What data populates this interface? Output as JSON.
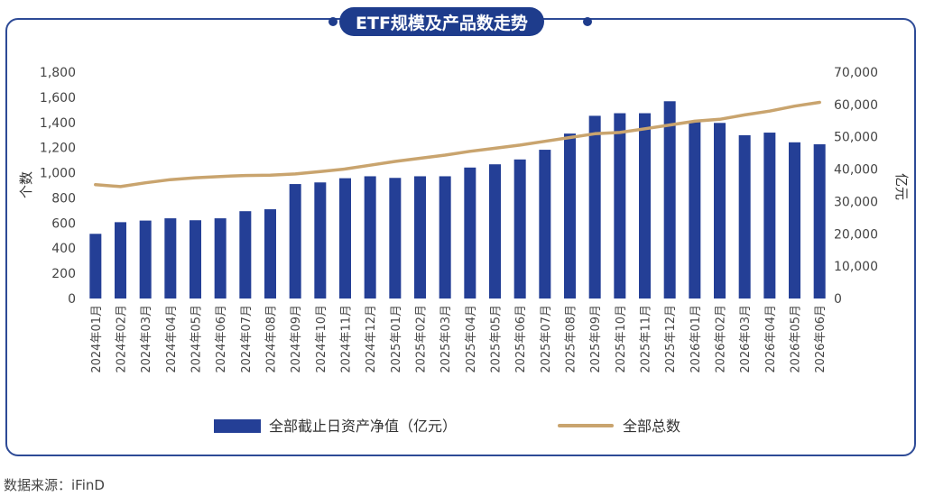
{
  "source": "数据来源：iFinD",
  "colors": {
    "bar": "#243f96",
    "line": "#c9a46e",
    "frame": "#2d4a96"
  },
  "chart_data": {
    "type": "bar",
    "title": "ETF规模及产品数走势",
    "categories": [
      "2024年01月",
      "2024年02月",
      "2024年03月",
      "2024年04月",
      "2024年05月",
      "2024年06月",
      "2024年07月",
      "2024年08月",
      "2024年09月",
      "2024年10月",
      "2024年11月",
      "2024年12月",
      "2025年01月",
      "2025年02月",
      "2025年03月",
      "2025年04月",
      "2025年05月",
      "2025年06月",
      "2025年07月",
      "2025年08月",
      "2025年09月",
      "2025年10月",
      "2025年11月",
      "2025年12月",
      "2026年01月",
      "2026年02月",
      "2026年03月",
      "2026年04月",
      "2026年05月",
      "2026年06月"
    ],
    "series": [
      {
        "name": "全部截止日资产净值（亿元）",
        "type": "bar",
        "axis": "right",
        "values": [
          20000,
          23600,
          24100,
          24800,
          24200,
          24800,
          27000,
          27600,
          35400,
          35900,
          37200,
          37800,
          37300,
          37800,
          37800,
          40500,
          41500,
          43000,
          46000,
          51000,
          56500,
          57300,
          57300,
          61000,
          55000,
          54300,
          50500,
          51300,
          48300,
          47700
        ]
      },
      {
        "name": "全部总数",
        "type": "line",
        "axis": "left",
        "values": [
          905,
          890,
          920,
          945,
          960,
          970,
          978,
          980,
          990,
          1010,
          1030,
          1060,
          1090,
          1115,
          1140,
          1170,
          1195,
          1220,
          1250,
          1280,
          1310,
          1320,
          1350,
          1380,
          1410,
          1425,
          1460,
          1490,
          1530,
          1560
        ]
      }
    ],
    "yleft": {
      "label": "个数",
      "range": [
        0,
        1800
      ],
      "ticks": [
        "0",
        "200",
        "400",
        "600",
        "800",
        "1,000",
        "1,200",
        "1,400",
        "1,600",
        "1,800"
      ]
    },
    "yright": {
      "label": "亿元",
      "range": [
        0,
        70000
      ],
      "ticks": [
        "0",
        "10,000",
        "20,000",
        "30,000",
        "40,000",
        "50,000",
        "60,000",
        "70,000"
      ]
    },
    "legend_position": "bottom",
    "grid": false
  }
}
